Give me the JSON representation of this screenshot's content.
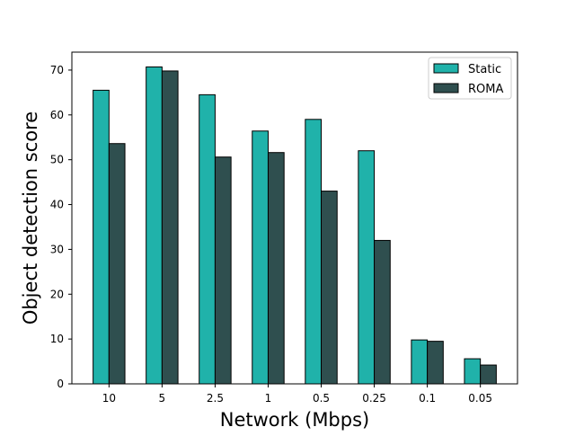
{
  "chart_data": {
    "type": "bar",
    "title": "",
    "xlabel": "Network (Mbps)",
    "ylabel": "Object detection score",
    "categories": [
      "10",
      "5",
      "2.5",
      "1",
      "0.5",
      "0.25",
      "0.1",
      "0.05"
    ],
    "series": [
      {
        "name": "Static",
        "color": "#20b2aa",
        "values": [
          65.5,
          70.7,
          64.5,
          56.4,
          59.0,
          52.0,
          9.8,
          5.6
        ]
      },
      {
        "name": "ROMA",
        "color": "#2f4f4f",
        "values": [
          53.6,
          69.8,
          50.6,
          51.6,
          43.0,
          32.0,
          9.5,
          4.2
        ]
      }
    ],
    "ylim": [
      0,
      74
    ],
    "yticks": [
      0,
      10,
      20,
      30,
      40,
      50,
      60,
      70
    ],
    "grid": false,
    "legend_position": "top-right"
  }
}
